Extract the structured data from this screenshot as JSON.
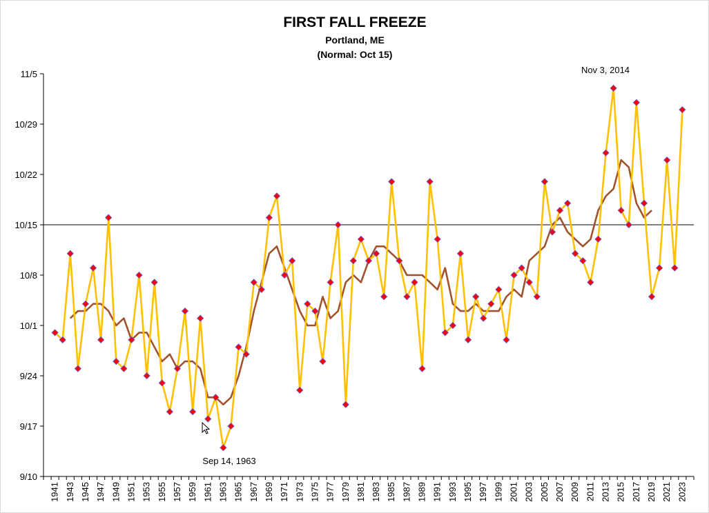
{
  "chart_data": {
    "type": "line",
    "title": "FIRST FALL FREEZE",
    "subtitle": "Portland, ME",
    "subtitle2": "(Normal: Oct 15)",
    "xlabel": "",
    "ylabel": "",
    "y_tick_labels": [
      "9/10",
      "9/17",
      "9/24",
      "10/1",
      "10/8",
      "10/15",
      "10/22",
      "10/29",
      "11/5"
    ],
    "y_tick_dates": [
      "09-10",
      "09-17",
      "09-24",
      "10-01",
      "10-08",
      "10-15",
      "10-22",
      "10-29",
      "11-05"
    ],
    "ylim": [
      "09-10",
      "11-05"
    ],
    "x_tick_labels": [
      "1941",
      "1943",
      "1945",
      "1947",
      "1949",
      "1951",
      "1953",
      "1955",
      "1957",
      "1959",
      "1961",
      "1963",
      "1965",
      "1967",
      "1969",
      "1971",
      "1973",
      "1975",
      "1977",
      "1979",
      "1981",
      "1983",
      "1985",
      "1987",
      "1989",
      "1991",
      "1993",
      "1995",
      "1997",
      "1999",
      "2001",
      "2003",
      "2005",
      "2007",
      "2009",
      "2011",
      "2013",
      "2015",
      "2017",
      "2019",
      "2021",
      "2023"
    ],
    "normal_line": {
      "label": "Normal: Oct 15",
      "date": "10-15",
      "color": "#000000"
    },
    "grid": false,
    "legend": "none",
    "annotations": [
      {
        "text": "Nov 3, 2014",
        "x": 2014,
        "date": "11-03"
      },
      {
        "text": "Sep 14, 1963",
        "x": 1963,
        "date": "09-14"
      }
    ],
    "series": [
      {
        "kind": "first-freeze",
        "color": "#ffc000",
        "marker_color": "#ff0000",
        "x": [
          1941,
          1942,
          1943,
          1944,
          1945,
          1946,
          1947,
          1948,
          1949,
          1950,
          1951,
          1952,
          1953,
          1954,
          1955,
          1956,
          1957,
          1958,
          1959,
          1960,
          1961,
          1962,
          1963,
          1964,
          1965,
          1966,
          1967,
          1968,
          1969,
          1970,
          1971,
          1972,
          1973,
          1974,
          1975,
          1976,
          1977,
          1978,
          1979,
          1980,
          1981,
          1982,
          1983,
          1984,
          1985,
          1986,
          1987,
          1988,
          1989,
          1990,
          1991,
          1992,
          1993,
          1994,
          1995,
          1996,
          1997,
          1998,
          1999,
          2000,
          2001,
          2002,
          2003,
          2004,
          2005,
          2006,
          2007,
          2008,
          2009,
          2010,
          2011,
          2012,
          2013,
          2014,
          2015,
          2016,
          2017,
          2018,
          2019,
          2020,
          2021,
          2022,
          2023
        ],
        "dates": [
          "09-30",
          "09-29",
          "10-11",
          "09-25",
          "10-04",
          "10-09",
          "09-29",
          "10-16",
          "09-26",
          "09-25",
          "09-29",
          "10-08",
          "09-24",
          "10-07",
          "09-23",
          "09-19",
          "09-25",
          "10-03",
          "09-19",
          "10-02",
          "09-18",
          "09-21",
          "09-14",
          "09-17",
          "09-28",
          "09-27",
          "10-07",
          "10-06",
          "10-16",
          "10-19",
          "10-08",
          "10-10",
          "09-22",
          "10-04",
          "10-03",
          "09-26",
          "10-07",
          "10-15",
          "09-20",
          "10-10",
          "10-13",
          "10-10",
          "10-11",
          "10-05",
          "10-21",
          "10-10",
          "10-05",
          "10-07",
          "09-25",
          "10-21",
          "10-13",
          "09-30",
          "10-01",
          "10-11",
          "09-29",
          "10-05",
          "10-02",
          "10-04",
          "10-06",
          "09-29",
          "10-08",
          "10-09",
          "10-07",
          "10-05",
          "10-21",
          "10-14",
          "10-17",
          "10-18",
          "10-11",
          "10-10",
          "10-07",
          "10-13",
          "10-25",
          "11-03",
          "10-17",
          "10-15",
          "11-01",
          "10-18",
          "10-05",
          "10-09",
          "10-24",
          "10-09",
          "10-31"
        ]
      },
      {
        "kind": "running-average",
        "color": "#a0522d",
        "x": [
          1943,
          1944,
          1945,
          1946,
          1947,
          1948,
          1949,
          1950,
          1951,
          1952,
          1953,
          1954,
          1955,
          1956,
          1957,
          1958,
          1959,
          1960,
          1961,
          1962,
          1963,
          1964,
          1965,
          1966,
          1967,
          1968,
          1969,
          1970,
          1971,
          1972,
          1973,
          1974,
          1975,
          1976,
          1977,
          1978,
          1979,
          1980,
          1981,
          1982,
          1983,
          1984,
          1985,
          1986,
          1987,
          1988,
          1989,
          1990,
          1991,
          1992,
          1993,
          1994,
          1995,
          1996,
          1997,
          1998,
          1999,
          2000,
          2001,
          2002,
          2003,
          2004,
          2005,
          2006,
          2007,
          2008,
          2009,
          2010,
          2011,
          2012,
          2013,
          2014,
          2015,
          2016,
          2017,
          2018,
          2019
        ],
        "dates": [
          "10-02",
          "10-03",
          "10-03",
          "10-04",
          "10-04",
          "10-03",
          "10-01",
          "10-02",
          "09-29",
          "09-30",
          "09-30",
          "09-28",
          "09-26",
          "09-27",
          "09-25",
          "09-26",
          "09-26",
          "09-25",
          "09-21",
          "09-21",
          "09-20",
          "09-21",
          "09-24",
          "09-28",
          "10-03",
          "10-07",
          "10-11",
          "10-12",
          "10-09",
          "10-06",
          "10-03",
          "10-01",
          "10-01",
          "10-05",
          "10-02",
          "10-03",
          "10-07",
          "10-08",
          "10-07",
          "10-10",
          "10-12",
          "10-12",
          "10-11",
          "10-10",
          "10-08",
          "10-08",
          "10-08",
          "10-07",
          "10-06",
          "10-09",
          "10-04",
          "10-03",
          "10-03",
          "10-04",
          "10-03",
          "10-03",
          "10-03",
          "10-05",
          "10-06",
          "10-05",
          "10-10",
          "10-11",
          "10-12",
          "10-15",
          "10-16",
          "10-14",
          "10-13",
          "10-12",
          "10-13",
          "10-17",
          "10-19",
          "10-20",
          "10-24",
          "10-23",
          "10-18",
          "10-16",
          "10-17"
        ]
      }
    ]
  }
}
